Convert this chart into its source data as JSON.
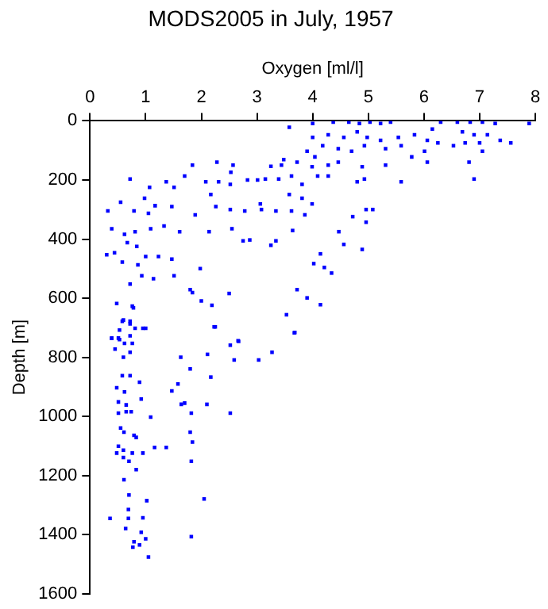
{
  "chart_data": {
    "type": "scatter",
    "title": "MODS2005 in July, 1957",
    "xlabel": "Oxygen [ml/l]",
    "ylabel": "Depth [m]",
    "xlim": [
      0,
      8
    ],
    "xticks": [
      0,
      1,
      2,
      3,
      4,
      5,
      6,
      7,
      8
    ],
    "ylim": [
      1600,
      0
    ],
    "yticks": [
      0,
      200,
      400,
      600,
      800,
      1000,
      1200,
      1400,
      1600
    ],
    "grid": false,
    "marker": "square",
    "series": [
      {
        "color": "#0000ff",
        "x": [
          4.0,
          4.37,
          4.65,
          4.84,
          5.03,
          5.22,
          5.4,
          4.0,
          4.28,
          4.56,
          4.8,
          4.98,
          5.22,
          4.18,
          4.46,
          4.7,
          4.93,
          5.31,
          5.54,
          3.9,
          4.04,
          3.58,
          4.28,
          4.46,
          4.89,
          3.99,
          4.09,
          4.28,
          4.8,
          4.93,
          5.59,
          5.31,
          5.78,
          5.59,
          6.01,
          6.06,
          6.3,
          5.83,
          6.15,
          6.6,
          6.83,
          7.05,
          7.28,
          6.69,
          6.9,
          7.14,
          6.74,
          7.0,
          7.37,
          7.56,
          6.53,
          7.05,
          6.81,
          6.9,
          7.89,
          6.25,
          6.06,
          3.25,
          3.44,
          3.48,
          3.72,
          3.15,
          3.39,
          3.62,
          3.81,
          3.58,
          3.81,
          3.99,
          3.62,
          3.86,
          3.34,
          3.08,
          3.06,
          2.78,
          2.52,
          2.26,
          2.17,
          2.08,
          2.31,
          2.52,
          2.83,
          3.01,
          2.57,
          2.53,
          2.28,
          1.84,
          1.7,
          1.51,
          1.37,
          1.07,
          0.98,
          0.72,
          1.17,
          1.47,
          1.05,
          0.79,
          0.32,
          0.55,
          1.89,
          2.14,
          2.55,
          2.87,
          2.75,
          3.25,
          3.64,
          3.34,
          4.47,
          4.72,
          4.96,
          5.08,
          4.96,
          4.89,
          4.56,
          4.14,
          4.02,
          4.21,
          4.34,
          3.72,
          3.9,
          4.14,
          3.53,
          3.67,
          2.5,
          2.0,
          2.19,
          2.25,
          2.66,
          1.84,
          1.51,
          1.47,
          1.23,
          1.0,
          0.93,
          1.14,
          0.72,
          0.48,
          0.6,
          0.39,
          0.53,
          0.72,
          0.76,
          0.58,
          0.3,
          0.44,
          0.67,
          0.84,
          0.39,
          0.62,
          0.81,
          1.09,
          1.33,
          1.61,
          0.86,
          1.98,
          1.8,
          0.95,
          0.78,
          0.58,
          0.72,
          0.81,
          1.0,
          0.53,
          0.72,
          0.39,
          0.51,
          0.62,
          0.76,
          0.45,
          0.72,
          0.6,
          1.63,
          1.8,
          2.11,
          2.17,
          2.52,
          2.67,
          2.59,
          3.03,
          3.27,
          3.68,
          2.23,
          0.58,
          0.72,
          0.89,
          0.48,
          0.62,
          1.47,
          1.58,
          0.51,
          0.65,
          0.92,
          1.64,
          1.7,
          2.1,
          2.52,
          1.82,
          0.51,
          0.65,
          0.74,
          1.09,
          0.55,
          0.61,
          0.79,
          0.83,
          1.8,
          1.84,
          0.51,
          0.6,
          0.48,
          0.6,
          0.76,
          0.95,
          1.16,
          1.37,
          0.7,
          1.82,
          0.83,
          0.61,
          0.7,
          1.02,
          2.05,
          0.36,
          0.69,
          0.95,
          0.69,
          0.64,
          0.92,
          1.0,
          0.79,
          1.82,
          0.77,
          0.89,
          1.05
        ],
        "values": [
          9,
          4,
          4,
          9,
          4,
          9,
          4,
          56,
          47,
          56,
          37,
          56,
          66,
          84,
          94,
          103,
          84,
          94,
          56,
          103,
          122,
          22,
          150,
          140,
          155,
          155,
          187,
          187,
          206,
          197,
          206,
          150,
          122,
          84,
          103,
          66,
          4,
          47,
          28,
          4,
          4,
          4,
          9,
          37,
          47,
          47,
          75,
          75,
          66,
          75,
          84,
          103,
          140,
          197,
          9,
          75,
          140,
          154,
          150,
          131,
          140,
          197,
          197,
          187,
          215,
          249,
          262,
          281,
          305,
          318,
          305,
          300,
          281,
          305,
          300,
          290,
          249,
          206,
          206,
          215,
          200,
          200,
          150,
          174,
          140,
          150,
          187,
          225,
          206,
          225,
          262,
          197,
          287,
          290,
          313,
          305,
          305,
          275,
          318,
          375,
          365,
          403,
          406,
          421,
          371,
          406,
          375,
          324,
          300,
          300,
          343,
          435,
          418,
          450,
          483,
          496,
          515,
          571,
          599,
          622,
          656,
          717,
          584,
          609,
          624,
          697,
          744,
          581,
          524,
          468,
          459,
          459,
          524,
          534,
          552,
          618,
          674,
          736,
          740,
          687,
          627,
          478,
          453,
          446,
          412,
          425,
          365,
          384,
          375,
          365,
          356,
          375,
          487,
          500,
          571,
          702,
          633,
          678,
          678,
          702,
          702,
          708,
          727,
          735,
          735,
          753,
          753,
          772,
          783,
          800,
          800,
          839,
          790,
          867,
          759,
          746,
          809,
          809,
          783,
          716,
          697,
          862,
          862,
          884,
          903,
          917,
          914,
          890,
          951,
          961,
          941,
          959,
          955,
          959,
          989,
          989,
          989,
          984,
          984,
          1002,
          1039,
          1053,
          1064,
          1071,
          1053,
          1087,
          1101,
          1114,
          1124,
          1139,
          1124,
          1124,
          1105,
          1105,
          1152,
          1152,
          1180,
          1214,
          1266,
          1285,
          1279,
          1345,
          1345,
          1343,
          1315,
          1379,
          1392,
          1414,
          1424,
          1407,
          1442,
          1435,
          1476
        ]
      }
    ]
  }
}
